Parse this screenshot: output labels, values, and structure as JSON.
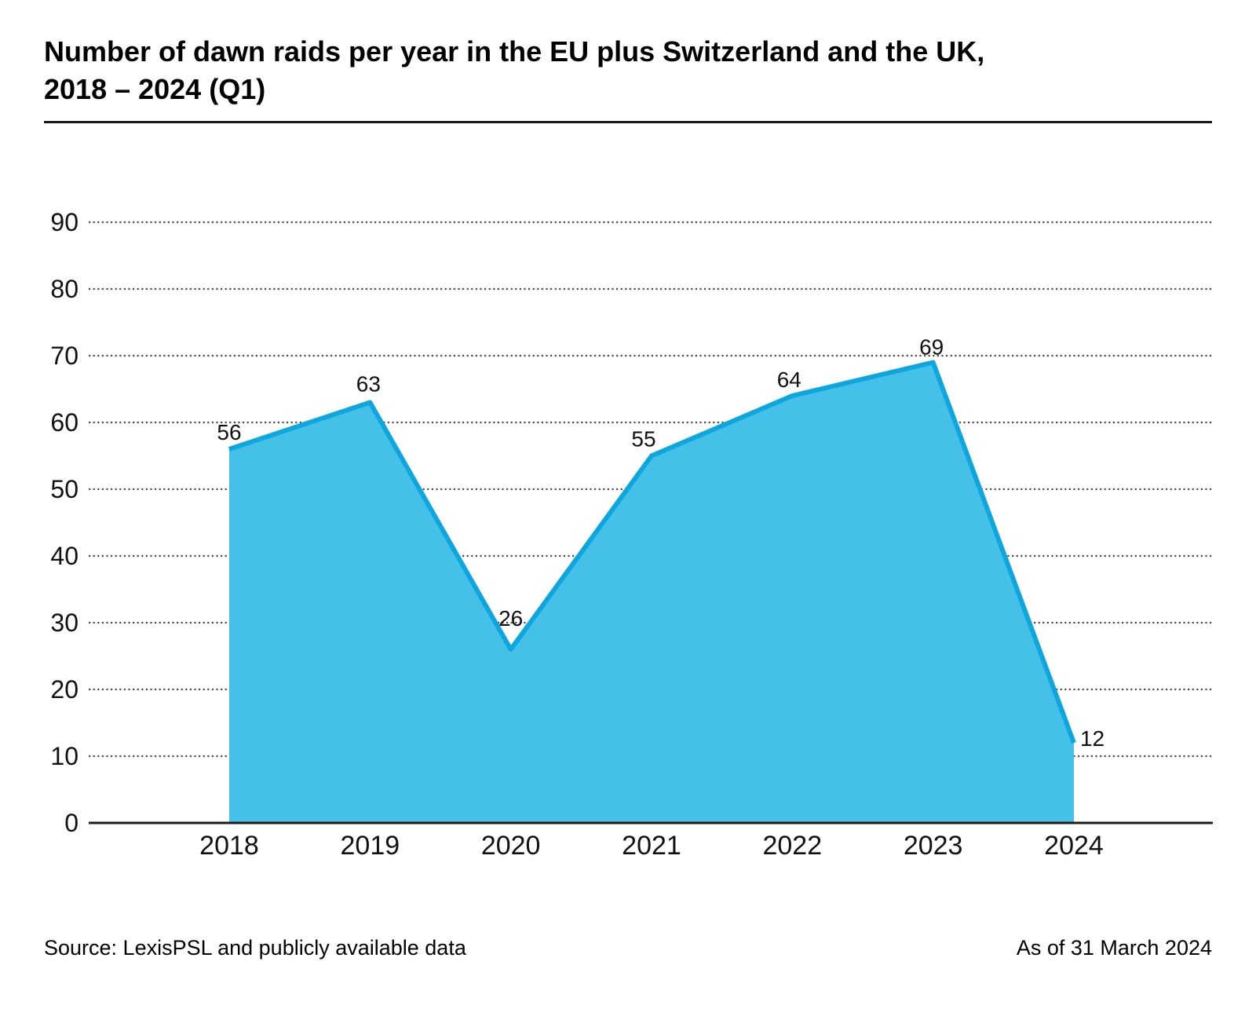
{
  "header": {
    "title_line1": "Number of dawn raids per year in the EU plus Switzerland and the UK,",
    "title_line2": "2018 – 2024 (Q1)"
  },
  "footer": {
    "source": "Source: LexisPSL and publicly available data",
    "as_of": "As of 31 March 2024"
  },
  "colors": {
    "area_fill": "#45C1E9",
    "line": "#0DA6DE",
    "grid": "#4D4D4D",
    "axis": "#1A1A1A",
    "text": "#111111"
  },
  "chart_data": {
    "type": "area",
    "title": "Number of dawn raids per year in the EU plus Switzerland and the UK, 2018 – 2024 (Q1)",
    "categories": [
      "2018",
      "2019",
      "2020",
      "2021",
      "2022",
      "2023",
      "2024"
    ],
    "values": [
      56,
      63,
      26,
      55,
      64,
      69,
      12
    ],
    "xlabel": "",
    "ylabel": "",
    "ylim": [
      0,
      90
    ],
    "ytick_step": 10,
    "grid": "horizontal-dotted",
    "legend": "none",
    "data_labels": true,
    "label_offsets": [
      [
        0,
        -12,
        "middle"
      ],
      [
        -2,
        -14,
        "middle"
      ],
      [
        0,
        -30,
        "middle"
      ],
      [
        -10,
        -12,
        "middle"
      ],
      [
        -4,
        -11,
        "middle"
      ],
      [
        -2,
        -10,
        "middle"
      ],
      [
        8,
        4,
        "start"
      ]
    ]
  }
}
